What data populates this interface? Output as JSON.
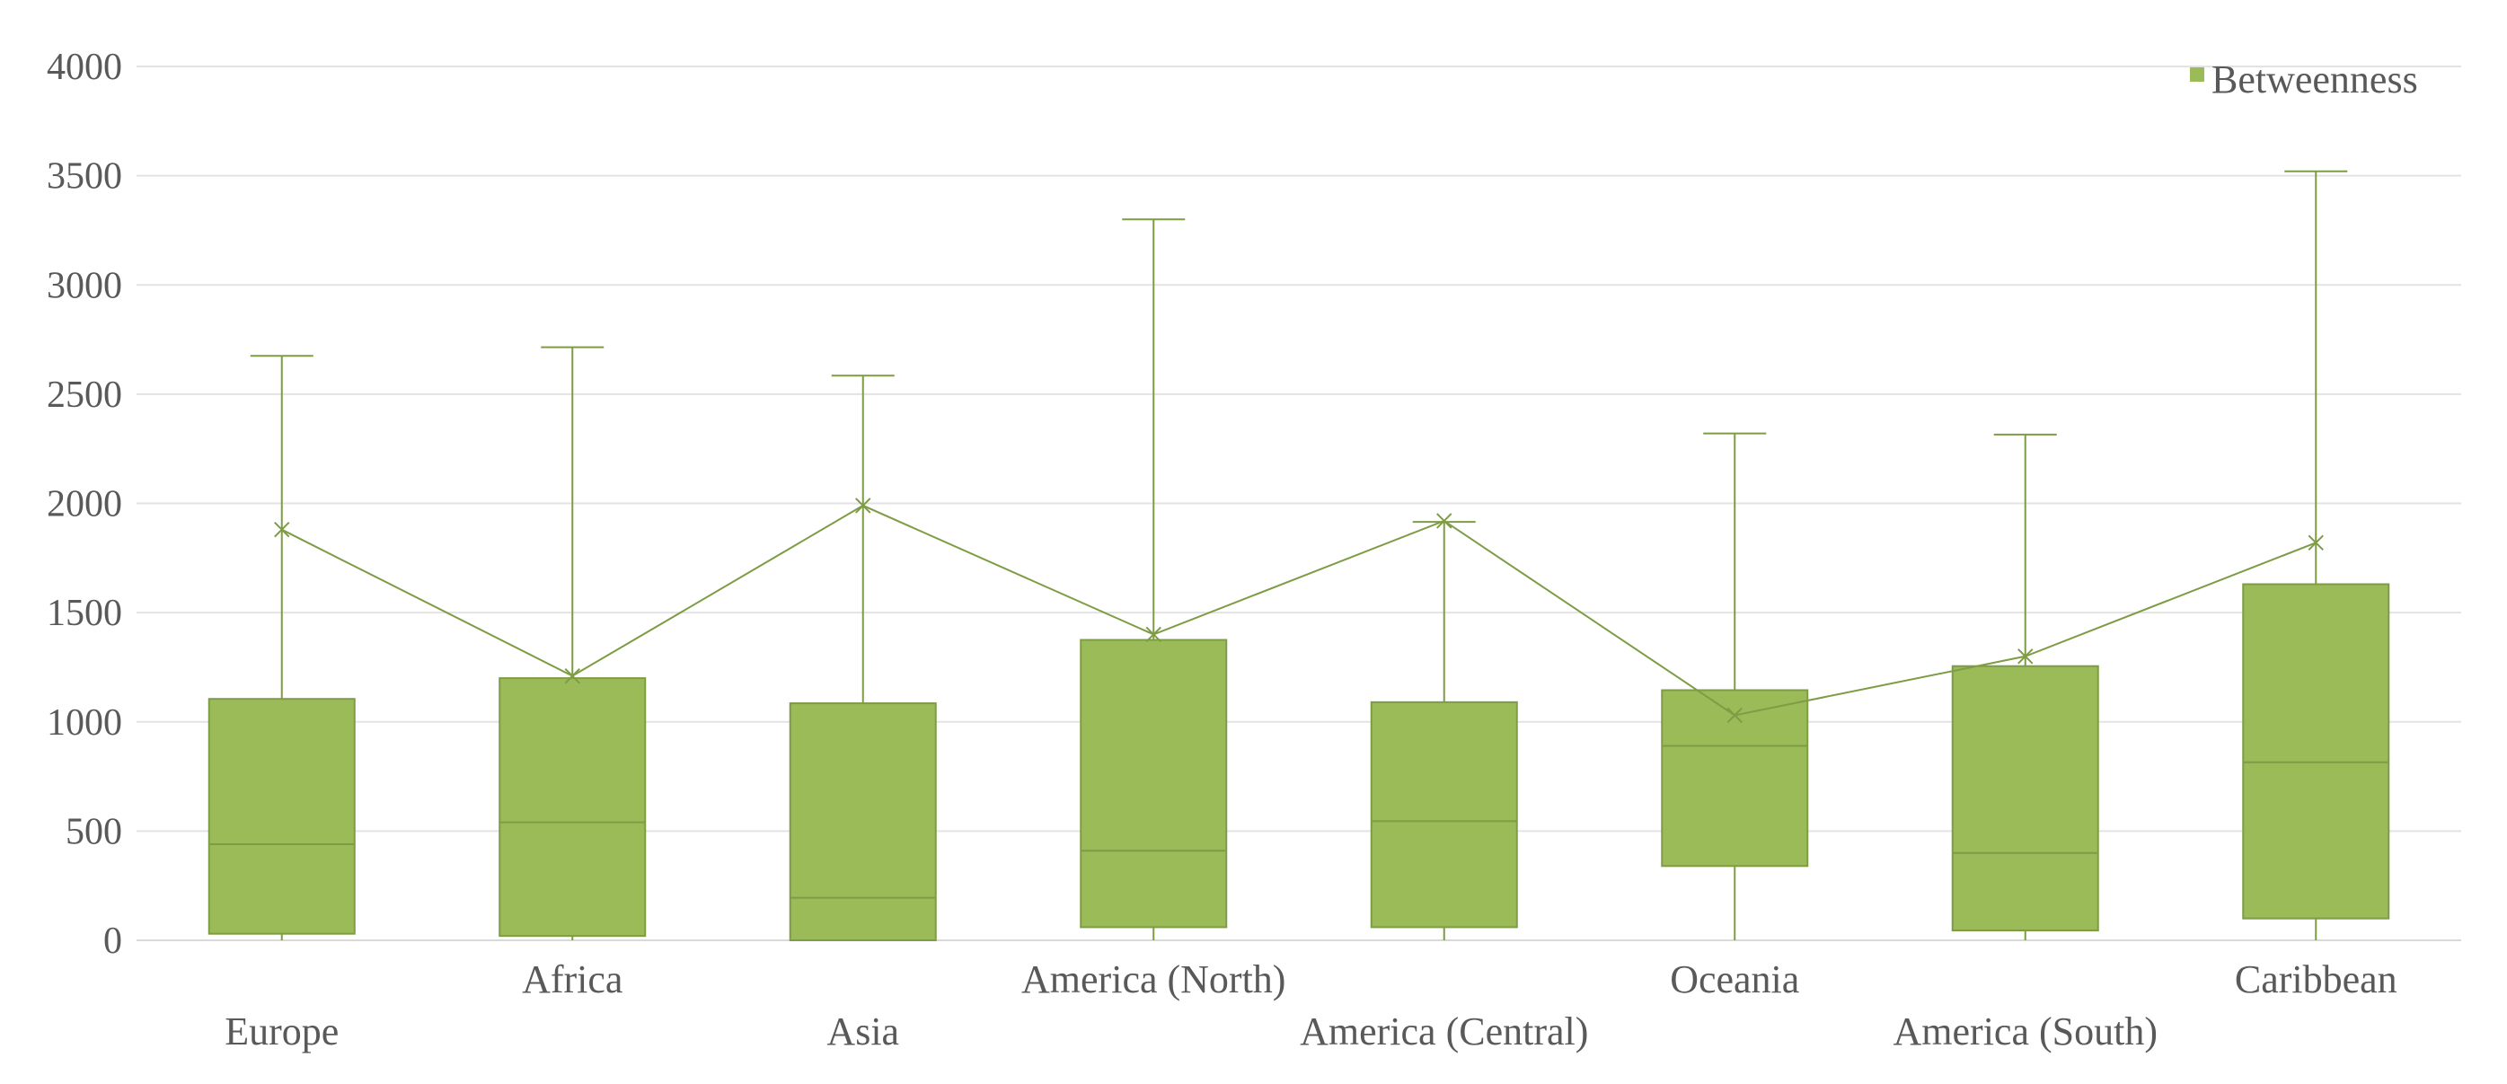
{
  "chart_data": {
    "type": "box",
    "categories": [
      "Europe",
      "Africa",
      "Asia",
      "America (North)",
      "America (Central)",
      "Oceania",
      "America (South)",
      "Caribbean"
    ],
    "series": [
      {
        "name": "Betweenness",
        "min": [
          0,
          0,
          0,
          0,
          0,
          0,
          0,
          0
        ],
        "q1": [
          30,
          20,
          0,
          60,
          60,
          340,
          45,
          100
        ],
        "median": [
          440,
          540,
          195,
          410,
          545,
          890,
          400,
          815
        ],
        "q3": [
          1105,
          1200,
          1085,
          1375,
          1090,
          1145,
          1255,
          1630
        ],
        "max": [
          2675,
          2715,
          2585,
          3300,
          1915,
          2320,
          2315,
          3520
        ],
        "mean": [
          1880,
          1210,
          1990,
          1400,
          1920,
          1030,
          1300,
          1820
        ]
      }
    ],
    "y_ticks": [
      "0",
      "500",
      "1000",
      "1500",
      "2000",
      "2500",
      "3000",
      "3500",
      "4000"
    ],
    "ylim": [
      0,
      4000
    ],
    "grid": true,
    "legend_position": "top-right",
    "color": "#9BBB59",
    "border_color": "#7E9C44"
  }
}
